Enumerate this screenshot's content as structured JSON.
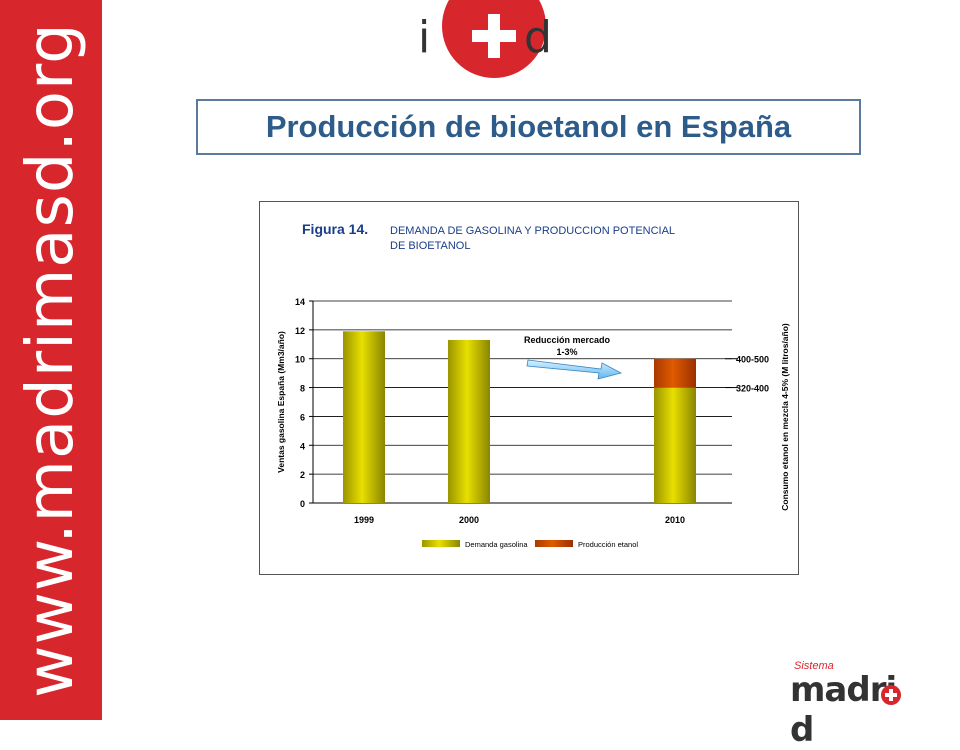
{
  "side_banner": {
    "url_text": "www.madrimasd.org"
  },
  "top_logo": {
    "left": "i",
    "right": "d"
  },
  "slide": {
    "title": "Producción de bioetanol en España"
  },
  "bottom_logo": {
    "small": "Sistema",
    "word": "madri",
    "tail": "d"
  },
  "colors": {
    "brand_red": "#d8262d",
    "title_blue": "#2e5c8a",
    "bar_yellow": "#e8e000",
    "bar_orange": "#e05a00",
    "arrow_blue": "#5fb8ef"
  },
  "chart_data": {
    "type": "bar",
    "title": "Figura 14.",
    "title_rest_line1": "DEMANDA DE GASOLINA Y PRODUCCION POTENCIAL",
    "title_rest_line2": "DE BIOETANOL",
    "categories": [
      "1999",
      "2000",
      "2010"
    ],
    "series": [
      {
        "name": "Demanda gasolina",
        "values": [
          11.9,
          11.3,
          8.0
        ]
      },
      {
        "name": "Producción etanol",
        "values": [
          0,
          0,
          2.0
        ]
      }
    ],
    "stacked": true,
    "ylabel": "Ventas gasolina España (Mm3/año)",
    "y2label": "Consumo etanol en mezcla 4-5% (M litros/año)",
    "ylim": [
      0,
      14
    ],
    "yticks": [
      0,
      2,
      4,
      6,
      8,
      10,
      12,
      14
    ],
    "grid": true,
    "legend_position": "bottom",
    "annotations": {
      "arrow_text_line1": "Reducción mercado",
      "arrow_text_line2": "1-3%",
      "right_label_upper": "400-500",
      "right_label_lower": "320-400"
    }
  }
}
